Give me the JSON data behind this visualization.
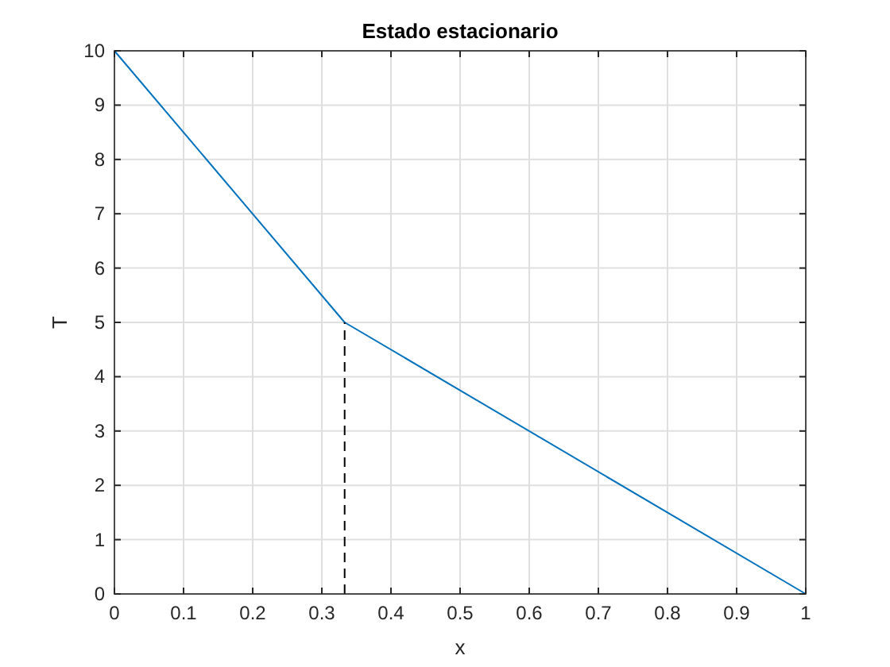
{
  "chart_data": {
    "type": "line",
    "title": "Estado estacionario",
    "xlabel": "x",
    "ylabel": "T",
    "xlim": [
      0,
      1
    ],
    "ylim": [
      0,
      10
    ],
    "xticks": [
      0,
      0.1,
      0.2,
      0.3,
      0.4,
      0.5,
      0.6,
      0.7,
      0.8,
      0.9,
      1
    ],
    "yticks": [
      0,
      1,
      2,
      3,
      4,
      5,
      6,
      7,
      8,
      9,
      10
    ],
    "grid": true,
    "marker": "none",
    "series": [
      {
        "color": "#0072bd",
        "x": [
          0,
          0.333,
          1
        ],
        "values": [
          10,
          5,
          0
        ],
        "line_style": "solid"
      },
      {
        "color": "#000000",
        "x": [
          0.333,
          0.333
        ],
        "values": [
          0,
          5
        ],
        "line_style": "dashed"
      }
    ]
  }
}
